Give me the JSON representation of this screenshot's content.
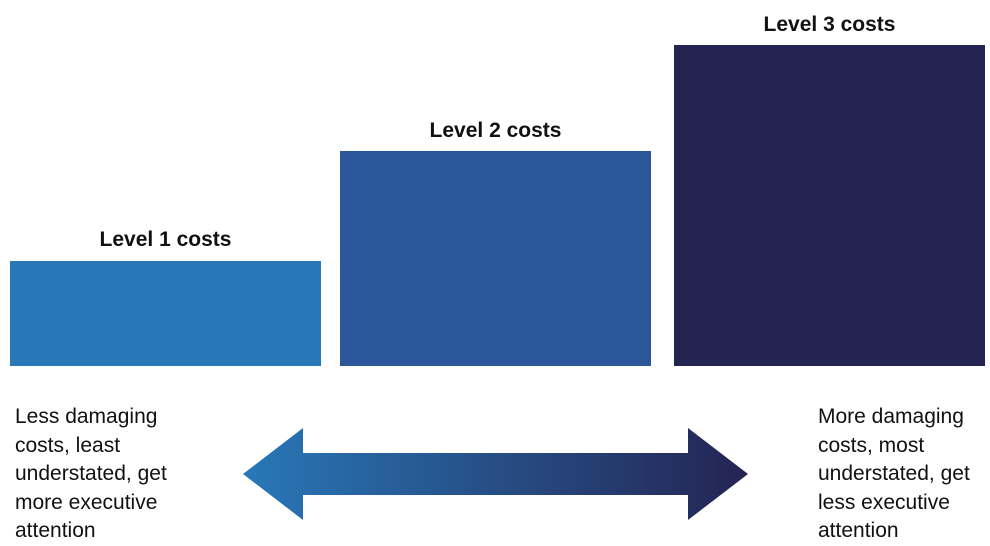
{
  "levels": [
    {
      "label": "Level 1 costs",
      "color": "#2878b8"
    },
    {
      "label": "Level 2 costs",
      "color": "#2b579a"
    },
    {
      "label": "Level 3 costs",
      "color": "#242452"
    }
  ],
  "left_text": {
    "lines": [
      "Less damaging",
      "costs, least",
      "understated, get",
      "more executive",
      "attention"
    ]
  },
  "right_text": {
    "lines": [
      "More damaging",
      "costs, most",
      "understated, get",
      "less executive",
      "attention"
    ]
  },
  "arrow": {
    "start_color": "#2878b8",
    "end_color": "#242452"
  }
}
